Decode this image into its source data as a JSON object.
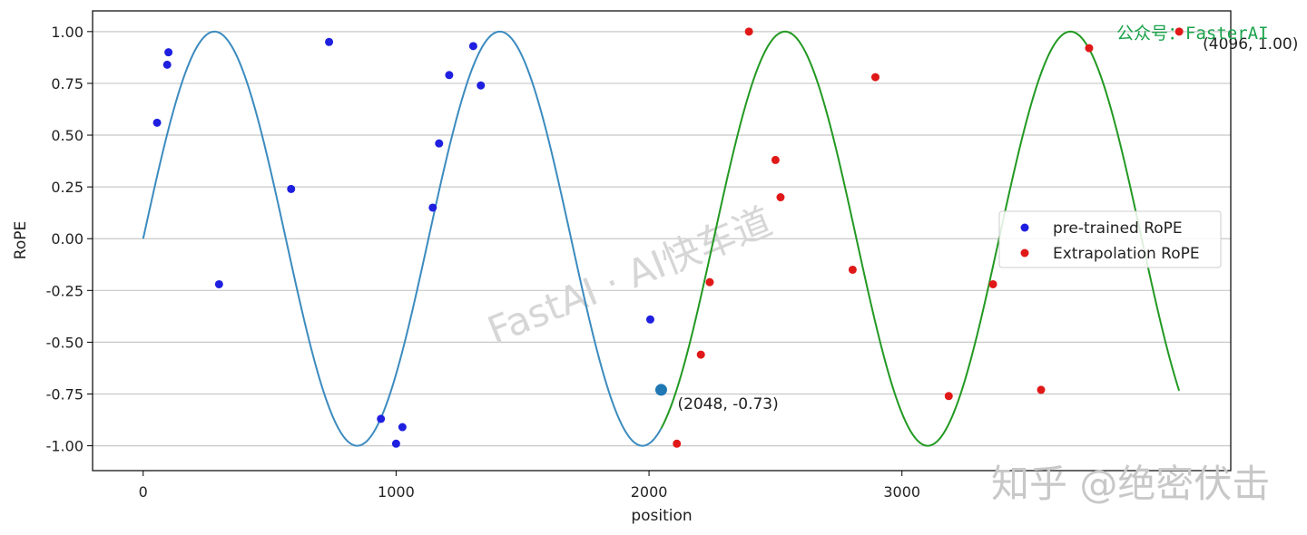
{
  "chart_data": {
    "type": "line",
    "title": "",
    "xlabel": "position",
    "ylabel": "RoPE",
    "xlim": [
      -200,
      4300
    ],
    "ylim": [
      -1.12,
      1.1
    ],
    "xticks": [
      0,
      1000,
      2000,
      3000
    ],
    "xtick_labels": [
      "0",
      "1000",
      "2000",
      "3000"
    ],
    "yticks": [
      1.0,
      0.75,
      0.5,
      0.25,
      0.0,
      -0.25,
      -0.5,
      -0.75,
      -1.0
    ],
    "ytick_labels": [
      "1.00",
      "0.75",
      "0.50",
      "0.25",
      "0.00",
      "-0.25",
      "-0.50",
      "-0.75",
      "-1.00"
    ],
    "grid": "horizontal",
    "curve": {
      "function": "sin",
      "period": 1128,
      "amplitude": 1.0
    },
    "series": [
      {
        "name": "pre-trained RoPE",
        "kind": "scatter",
        "color": "#1f1fe0",
        "x": [
          55,
          95,
          100,
          300,
          585,
          735,
          940,
          1000,
          1025,
          1145,
          1170,
          1210,
          1305,
          1335,
          2005
        ],
        "y": [
          0.56,
          0.84,
          0.9,
          -0.22,
          0.24,
          0.95,
          -0.87,
          -0.99,
          -0.91,
          0.15,
          0.46,
          0.79,
          0.93,
          0.74,
          -0.39
        ]
      },
      {
        "name": "Extrapolation RoPE",
        "kind": "scatter",
        "color": "#e01818",
        "x": [
          2110,
          2205,
          2240,
          2395,
          2500,
          2520,
          2805,
          2895,
          3185,
          3360,
          3550,
          3740,
          4096
        ],
        "y": [
          -0.99,
          -0.56,
          -0.21,
          1.0,
          0.38,
          0.2,
          -0.15,
          0.78,
          -0.76,
          -0.22,
          -0.73,
          0.92,
          1.0
        ]
      },
      {
        "kind": "line",
        "color": "#3b8bbf",
        "x_range": [
          0,
          2048
        ]
      },
      {
        "kind": "line",
        "color": "#229922",
        "x_range": [
          2048,
          4096
        ]
      }
    ],
    "highlight_point": {
      "x": 2048,
      "y": -0.73,
      "color": "#1f77b4"
    },
    "annotations": [
      {
        "text": "(2048, -0.73)",
        "x": 2048,
        "y": -0.73
      },
      {
        "text": "(4096, 1.00)",
        "x": 4096,
        "y": 1.0
      }
    ],
    "legend": {
      "position": "right"
    }
  },
  "watermarks": {
    "top_right": "公众号：FasterAI",
    "center": "FastAI · AI快车道",
    "bottom_right": "知乎 @绝密伏击"
  }
}
